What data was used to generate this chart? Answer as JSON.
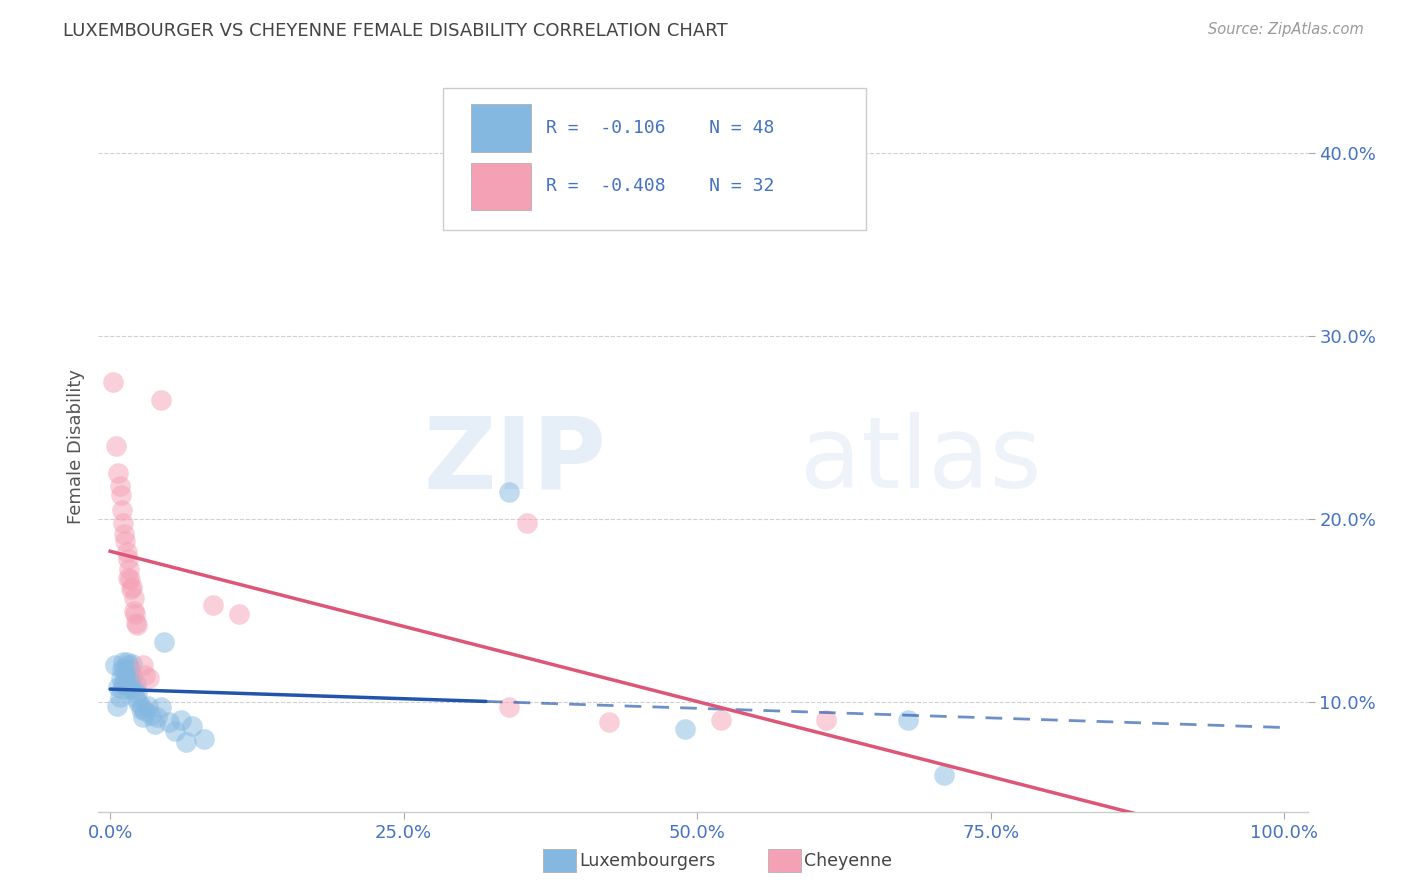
{
  "title": "LUXEMBOURGER VS CHEYENNE FEMALE DISABILITY CORRELATION CHART",
  "source": "Source: ZipAtlas.com",
  "ylabel": "Female Disability",
  "y_ticks": [
    0.1,
    0.2,
    0.3,
    0.4
  ],
  "y_tick_labels": [
    "10.0%",
    "20.0%",
    "30.0%",
    "40.0%"
  ],
  "x_ticks": [
    0.0,
    0.25,
    0.5,
    0.75,
    1.0
  ],
  "x_tick_labels": [
    "0.0%",
    "25.0%",
    "50.0%",
    "75.0%",
    "100.0%"
  ],
  "xlim": [
    -0.01,
    1.02
  ],
  "ylim": [
    0.04,
    0.44
  ],
  "blue_R": -0.106,
  "blue_N": 48,
  "pink_R": -0.408,
  "pink_N": 32,
  "blue_color": "#85b8e0",
  "pink_color": "#f4a0b5",
  "blue_line_color": "#2255aa",
  "pink_line_color": "#dd5577",
  "blue_scatter": [
    [
      0.004,
      0.12
    ],
    [
      0.006,
      0.098
    ],
    [
      0.007,
      0.108
    ],
    [
      0.008,
      0.103
    ],
    [
      0.009,
      0.113
    ],
    [
      0.01,
      0.118
    ],
    [
      0.01,
      0.107
    ],
    [
      0.011,
      0.122
    ],
    [
      0.011,
      0.11
    ],
    [
      0.012,
      0.118
    ],
    [
      0.013,
      0.113
    ],
    [
      0.013,
      0.11
    ],
    [
      0.014,
      0.122
    ],
    [
      0.014,
      0.115
    ],
    [
      0.015,
      0.12
    ],
    [
      0.015,
      0.11
    ],
    [
      0.016,
      0.115
    ],
    [
      0.016,
      0.107
    ],
    [
      0.017,
      0.112
    ],
    [
      0.017,
      0.118
    ],
    [
      0.018,
      0.11
    ],
    [
      0.019,
      0.114
    ],
    [
      0.019,
      0.121
    ],
    [
      0.02,
      0.107
    ],
    [
      0.021,
      0.103
    ],
    [
      0.022,
      0.11
    ],
    [
      0.023,
      0.105
    ],
    [
      0.024,
      0.1
    ],
    [
      0.026,
      0.096
    ],
    [
      0.027,
      0.097
    ],
    [
      0.028,
      0.092
    ],
    [
      0.03,
      0.095
    ],
    [
      0.032,
      0.098
    ],
    [
      0.035,
      0.093
    ],
    [
      0.038,
      0.088
    ],
    [
      0.04,
      0.092
    ],
    [
      0.043,
      0.097
    ],
    [
      0.046,
      0.133
    ],
    [
      0.05,
      0.089
    ],
    [
      0.055,
      0.084
    ],
    [
      0.06,
      0.09
    ],
    [
      0.065,
      0.078
    ],
    [
      0.07,
      0.087
    ],
    [
      0.08,
      0.08
    ],
    [
      0.34,
      0.215
    ],
    [
      0.49,
      0.085
    ],
    [
      0.68,
      0.09
    ],
    [
      0.71,
      0.06
    ]
  ],
  "pink_scatter": [
    [
      0.002,
      0.275
    ],
    [
      0.005,
      0.24
    ],
    [
      0.007,
      0.225
    ],
    [
      0.008,
      0.218
    ],
    [
      0.009,
      0.213
    ],
    [
      0.01,
      0.205
    ],
    [
      0.011,
      0.198
    ],
    [
      0.012,
      0.192
    ],
    [
      0.013,
      0.188
    ],
    [
      0.014,
      0.182
    ],
    [
      0.015,
      0.178
    ],
    [
      0.015,
      0.168
    ],
    [
      0.016,
      0.173
    ],
    [
      0.017,
      0.167
    ],
    [
      0.018,
      0.162
    ],
    [
      0.019,
      0.163
    ],
    [
      0.02,
      0.157
    ],
    [
      0.02,
      0.15
    ],
    [
      0.021,
      0.148
    ],
    [
      0.022,
      0.143
    ],
    [
      0.023,
      0.142
    ],
    [
      0.028,
      0.12
    ],
    [
      0.03,
      0.115
    ],
    [
      0.033,
      0.113
    ],
    [
      0.043,
      0.265
    ],
    [
      0.088,
      0.153
    ],
    [
      0.11,
      0.148
    ],
    [
      0.34,
      0.097
    ],
    [
      0.355,
      0.198
    ],
    [
      0.425,
      0.089
    ],
    [
      0.52,
      0.09
    ],
    [
      0.61,
      0.09
    ]
  ],
  "watermark_zip": "ZIP",
  "watermark_atlas": "atlas",
  "background_color": "#ffffff",
  "grid_color": "#cccccc",
  "title_color": "#444444",
  "tick_color": "#4472c4",
  "ylabel_color": "#555555"
}
